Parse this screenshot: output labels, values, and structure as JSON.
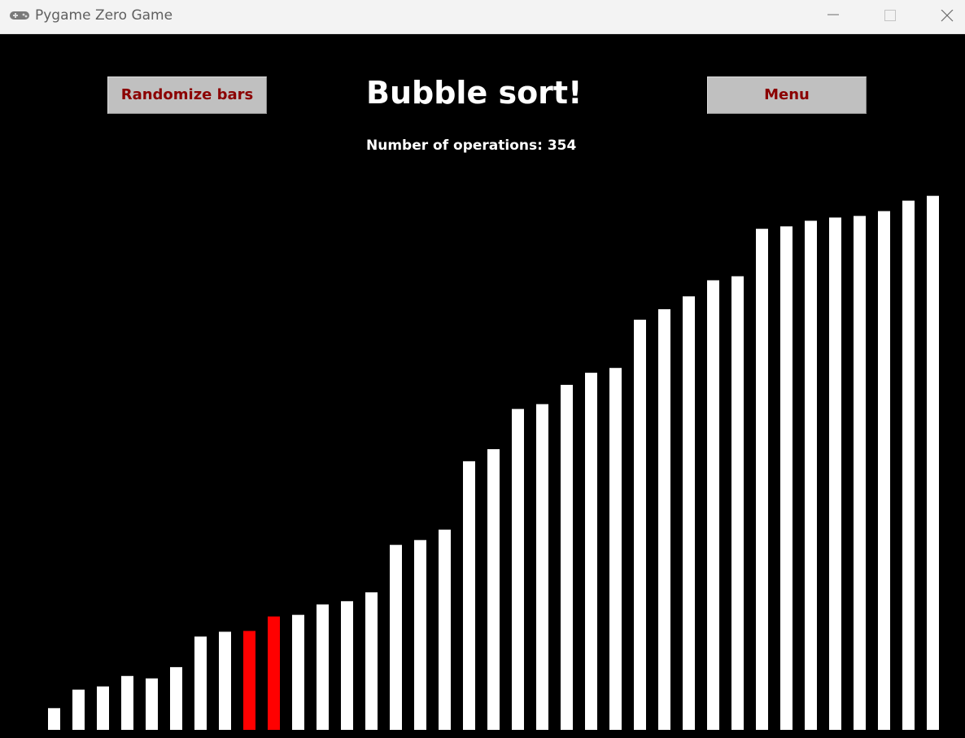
{
  "window": {
    "title": "Pygame Zero Game",
    "icon": "gamepad-icon",
    "controls": [
      "minimize-icon",
      "maximize-icon",
      "close-icon"
    ]
  },
  "game": {
    "randomize_label": "Randomize bars",
    "heading": "Bubble sort!",
    "operations_text": "Number of operations: 354",
    "menu_label": "Menu"
  },
  "colors": {
    "background": "#000000",
    "bar": "#ffffff",
    "bar_highlight": "#ff0000",
    "button_bg": "#c0c0c0",
    "button_text": "#8b0000"
  },
  "chart_data": {
    "type": "bar",
    "values": [
      27,
      50,
      54,
      67,
      64,
      78,
      116,
      122,
      123,
      141,
      143,
      156,
      160,
      171,
      230,
      236,
      249,
      334,
      349,
      399,
      405,
      429,
      444,
      450,
      510,
      523,
      539,
      559,
      564,
      623,
      626,
      633,
      637,
      639,
      645,
      658,
      664
    ],
    "highlighted": [
      8,
      9
    ],
    "ylim": [
      0,
      865
    ]
  }
}
